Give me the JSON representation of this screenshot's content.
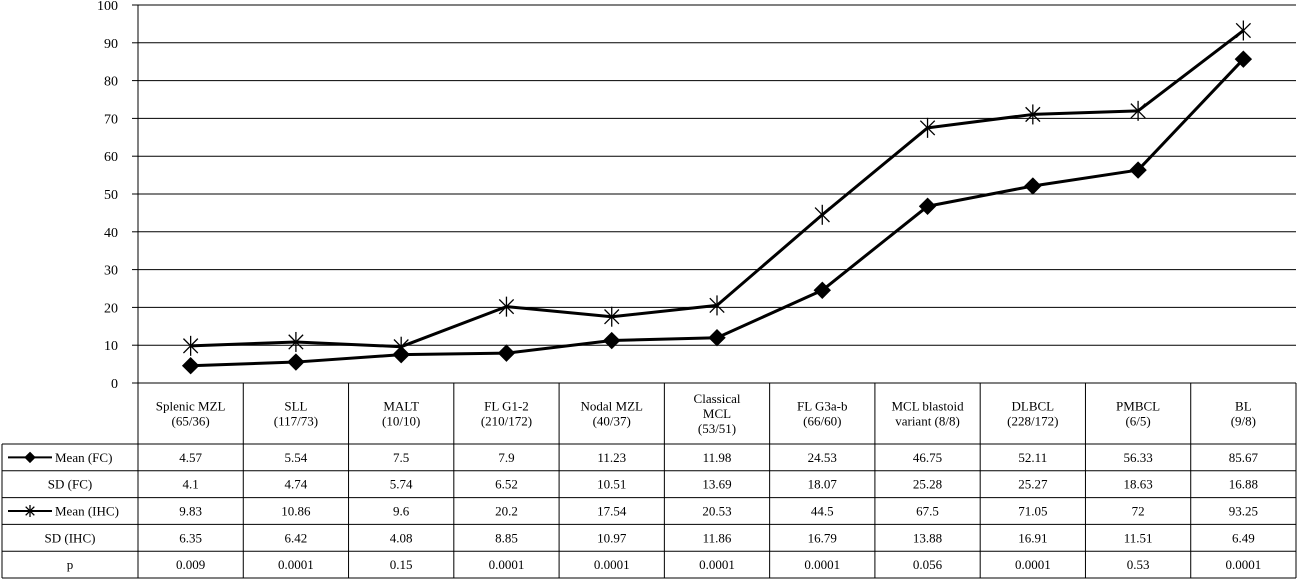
{
  "chart_data": {
    "type": "line",
    "ylim": [
      0,
      100
    ],
    "yticks": [
      0,
      10,
      20,
      30,
      40,
      50,
      60,
      70,
      80,
      90,
      100
    ],
    "grid": true,
    "categories": [
      [
        "Splenic MZL",
        "(65/36)"
      ],
      [
        "SLL",
        "(117/73)"
      ],
      [
        "MALT",
        "(10/10)"
      ],
      [
        "FL G1-2",
        "(210/172)"
      ],
      [
        "Nodal MZL",
        "(40/37)"
      ],
      [
        "Classical",
        "MCL",
        "(53/51)"
      ],
      [
        "FL G3a-b",
        "(66/60)"
      ],
      [
        "MCL blastoid",
        "variant (8/8)"
      ],
      [
        "DLBCL",
        "(228/172)"
      ],
      [
        "PMBCL",
        "(6/5)"
      ],
      [
        "BL",
        "(9/8)"
      ]
    ],
    "series": [
      {
        "name": "Mean (FC)",
        "marker": "diamond",
        "color": "#000000",
        "values": [
          4.57,
          5.54,
          7.5,
          7.9,
          11.23,
          11.98,
          24.53,
          46.75,
          52.11,
          56.33,
          85.67
        ]
      },
      {
        "name": "Mean (IHC)",
        "marker": "asterisk",
        "color": "#000000",
        "values": [
          9.83,
          10.86,
          9.6,
          20.2,
          17.54,
          20.53,
          44.5,
          67.5,
          71.05,
          72,
          93.25
        ]
      }
    ],
    "table": {
      "rows": [
        {
          "label": "Mean (FC)",
          "marker": "diamond",
          "cells": [
            "4.57",
            "5.54",
            "7.5",
            "7.9",
            "11.23",
            "11.98",
            "24.53",
            "46.75",
            "52.11",
            "56.33",
            "85.67"
          ]
        },
        {
          "label": "SD (FC)",
          "marker": "",
          "cells": [
            "4.1",
            "4.74",
            "5.74",
            "6.52",
            "10.51",
            "13.69",
            "18.07",
            "25.28",
            "25.27",
            "18.63",
            "16.88"
          ]
        },
        {
          "label": "Mean (IHC)",
          "marker": "asterisk",
          "cells": [
            "9.83",
            "10.86",
            "9.6",
            "20.2",
            "17.54",
            "20.53",
            "44.5",
            "67.5",
            "71.05",
            "72",
            "93.25"
          ]
        },
        {
          "label": "SD (IHC)",
          "marker": "",
          "cells": [
            "6.35",
            "6.42",
            "4.08",
            "8.85",
            "10.97",
            "11.86",
            "16.79",
            "13.88",
            "16.91",
            "11.51",
            "6.49"
          ]
        },
        {
          "label": "p",
          "marker": "",
          "cells": [
            "0.009",
            "0.0001",
            "0.15",
            "0.0001",
            "0.0001",
            "0.0001",
            "0.0001",
            "0.056",
            "0.0001",
            "0.53",
            "0.0001"
          ]
        }
      ]
    }
  }
}
